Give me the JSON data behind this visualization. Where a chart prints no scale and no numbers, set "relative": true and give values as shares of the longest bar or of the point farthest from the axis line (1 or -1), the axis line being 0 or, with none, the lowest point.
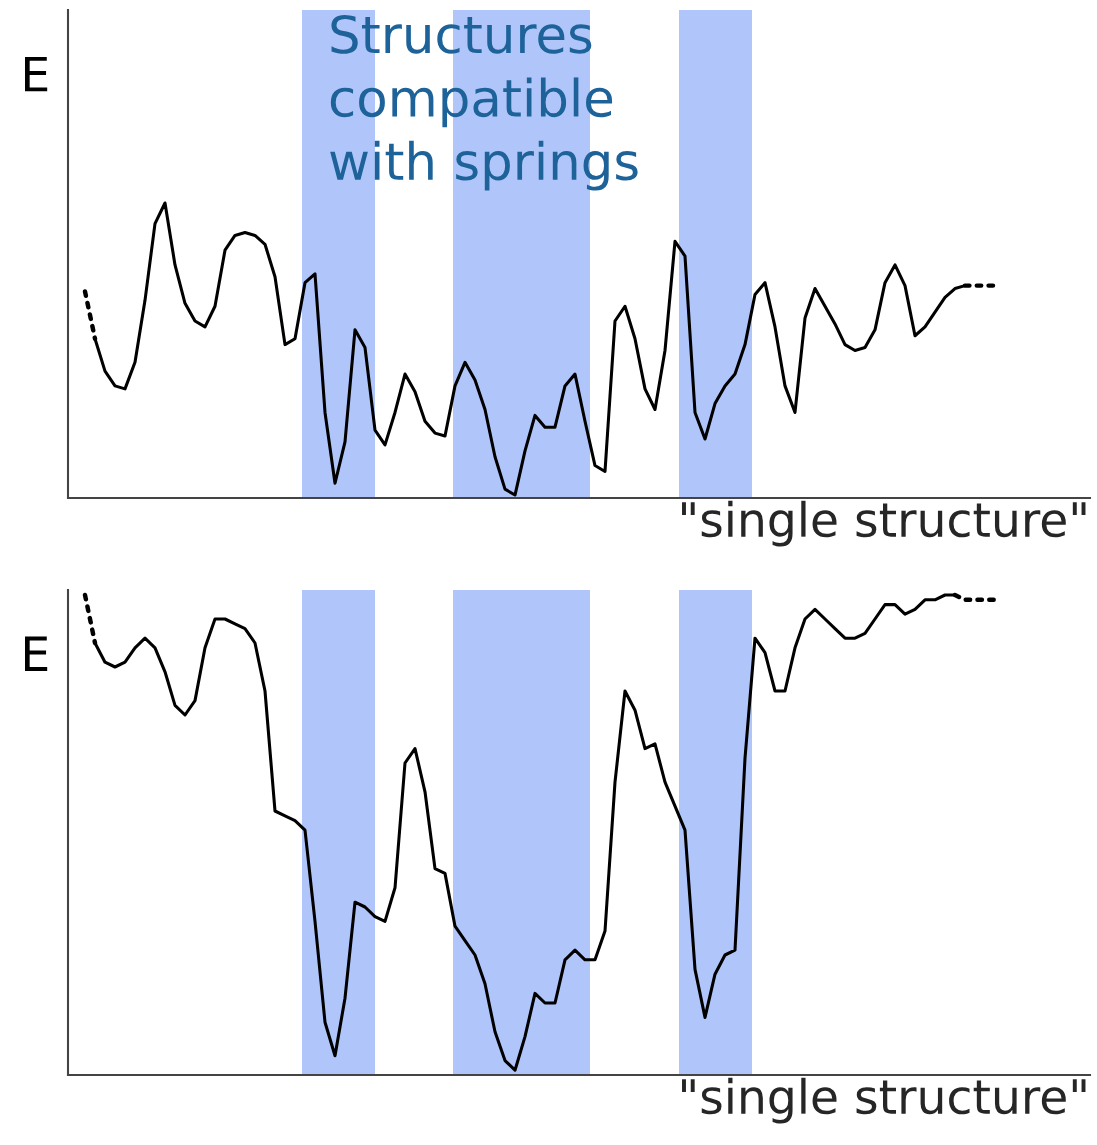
{
  "chart_data": [
    {
      "type": "line",
      "relative": true,
      "ylabel": "E",
      "xlabel": "\"single structure\"",
      "tick_labels": false,
      "annotations": [
        "Structures\ncompatible\nwith springs"
      ],
      "categories": [
        null,
        null,
        null,
        null,
        null,
        null,
        null,
        null,
        null,
        null,
        null,
        null,
        null,
        null,
        null,
        null,
        null,
        null,
        null,
        null,
        null,
        null,
        null,
        null,
        null,
        null,
        null,
        null,
        null,
        null,
        null,
        null,
        null,
        null,
        null,
        null,
        null,
        null,
        null,
        null,
        null,
        null,
        null,
        null,
        null,
        null,
        null,
        null,
        null,
        null,
        null,
        null,
        null,
        null,
        null,
        null,
        null,
        null,
        null,
        null,
        null,
        null,
        null,
        null,
        null,
        null,
        null,
        null,
        null,
        null,
        null,
        null,
        null,
        null,
        null,
        null,
        null,
        null,
        null,
        null,
        null,
        null,
        null,
        null,
        null,
        null,
        null,
        null,
        null,
        null,
        null,
        null
      ],
      "series": [
        {
          "color": "#000000",
          "line_style": "solid",
          "values": [
            null,
            0.54,
            0.43,
            0.38,
            0.37,
            0.46,
            0.67,
            0.93,
            1.0,
            0.79,
            0.66,
            0.6,
            0.58,
            0.65,
            0.84,
            0.89,
            0.9,
            0.89,
            0.86,
            0.75,
            0.52,
            0.54,
            0.73,
            0.76,
            0.29,
            0.05,
            0.19,
            0.57,
            0.51,
            0.23,
            0.18,
            0.29,
            0.42,
            0.36,
            0.26,
            0.22,
            0.21,
            0.38,
            0.46,
            0.4,
            0.3,
            0.14,
            0.03,
            0.01,
            0.16,
            0.28,
            0.24,
            0.24,
            0.38,
            0.42,
            0.26,
            0.11,
            0.09,
            0.6,
            0.65,
            0.54,
            0.37,
            0.3,
            0.5,
            0.87,
            0.82,
            0.29,
            0.2,
            0.32,
            0.38,
            0.42,
            0.52,
            0.69,
            0.73,
            0.58,
            0.38,
            0.29,
            0.61,
            0.71,
            0.65,
            0.59,
            0.52,
            0.5,
            0.51,
            0.57,
            0.73,
            0.79,
            0.72,
            0.55,
            0.58,
            0.63,
            0.68,
            0.71,
            0.72,
            null,
            null,
            null
          ]
        },
        {
          "color": "#000000",
          "line_style": "dotted",
          "values": [
            0.7,
            0.54,
            null,
            null,
            null,
            null,
            null,
            null,
            null,
            null,
            null,
            null,
            null,
            null,
            null,
            null,
            null,
            null,
            null,
            null,
            null,
            null,
            null,
            null,
            null,
            null,
            null,
            null,
            null,
            null,
            null,
            null,
            null,
            null,
            null,
            null,
            null,
            null,
            null,
            null,
            null,
            null,
            null,
            null,
            null,
            null,
            null,
            null,
            null,
            null,
            null,
            null,
            null,
            null,
            null,
            null,
            null,
            null,
            null,
            null,
            null,
            null,
            null,
            null,
            null,
            null,
            null,
            null,
            null,
            null,
            null,
            null,
            null,
            null,
            null,
            null,
            null,
            null,
            null,
            null,
            null,
            null,
            null,
            null,
            null,
            null,
            null,
            null,
            0.72,
            0.72,
            0.72,
            0.72
          ]
        }
      ]
    },
    {
      "type": "line",
      "relative": true,
      "ylabel": "E",
      "xlabel": "\"single structure\"",
      "tick_labels": false,
      "categories": [
        null,
        null,
        null,
        null,
        null,
        null,
        null,
        null,
        null,
        null,
        null,
        null,
        null,
        null,
        null,
        null,
        null,
        null,
        null,
        null,
        null,
        null,
        null,
        null,
        null,
        null,
        null,
        null,
        null,
        null,
        null,
        null,
        null,
        null,
        null,
        null,
        null,
        null,
        null,
        null,
        null,
        null,
        null,
        null,
        null,
        null,
        null,
        null,
        null,
        null,
        null,
        null,
        null,
        null,
        null,
        null,
        null,
        null,
        null,
        null,
        null,
        null,
        null,
        null,
        null,
        null,
        null,
        null,
        null,
        null,
        null,
        null,
        null,
        null,
        null,
        null,
        null,
        null,
        null,
        null,
        null,
        null,
        null,
        null,
        null,
        null,
        null,
        null,
        null,
        null,
        null,
        null
      ],
      "series": [
        {
          "color": "#000000",
          "line_style": "solid",
          "values": [
            null,
            0.9,
            0.86,
            0.85,
            0.86,
            0.89,
            0.91,
            0.89,
            0.84,
            0.77,
            0.75,
            0.78,
            0.89,
            0.95,
            0.95,
            0.94,
            0.93,
            0.9,
            0.8,
            0.55,
            0.54,
            0.53,
            0.51,
            0.32,
            0.11,
            0.04,
            0.16,
            0.36,
            0.35,
            0.33,
            0.32,
            0.39,
            0.65,
            0.68,
            0.59,
            0.43,
            0.42,
            0.31,
            0.28,
            0.25,
            0.19,
            0.09,
            0.03,
            0.01,
            0.08,
            0.17,
            0.15,
            0.15,
            0.24,
            0.26,
            0.24,
            0.24,
            0.3,
            0.61,
            0.8,
            0.76,
            0.68,
            0.69,
            0.61,
            0.56,
            0.51,
            0.22,
            0.12,
            0.21,
            0.25,
            0.26,
            0.66,
            0.91,
            0.88,
            0.8,
            0.8,
            0.89,
            0.95,
            0.97,
            0.95,
            0.93,
            0.91,
            0.91,
            0.92,
            0.95,
            0.98,
            0.98,
            0.96,
            0.97,
            0.99,
            0.99,
            1.0,
            1.0,
            null,
            null,
            null,
            null
          ]
        },
        {
          "color": "#000000",
          "line_style": "dotted",
          "values": [
            1.0,
            0.9,
            null,
            null,
            null,
            null,
            null,
            null,
            null,
            null,
            null,
            null,
            null,
            null,
            null,
            null,
            null,
            null,
            null,
            null,
            null,
            null,
            null,
            null,
            null,
            null,
            null,
            null,
            null,
            null,
            null,
            null,
            null,
            null,
            null,
            null,
            null,
            null,
            null,
            null,
            null,
            null,
            null,
            null,
            null,
            null,
            null,
            null,
            null,
            null,
            null,
            null,
            null,
            null,
            null,
            null,
            null,
            null,
            null,
            null,
            null,
            null,
            null,
            null,
            null,
            null,
            null,
            null,
            null,
            null,
            null,
            null,
            null,
            null,
            null,
            null,
            null,
            null,
            null,
            null,
            null,
            null,
            null,
            null,
            null,
            null,
            null,
            1.0,
            0.99,
            0.99,
            0.99,
            0.99
          ]
        }
      ]
    }
  ]
}
